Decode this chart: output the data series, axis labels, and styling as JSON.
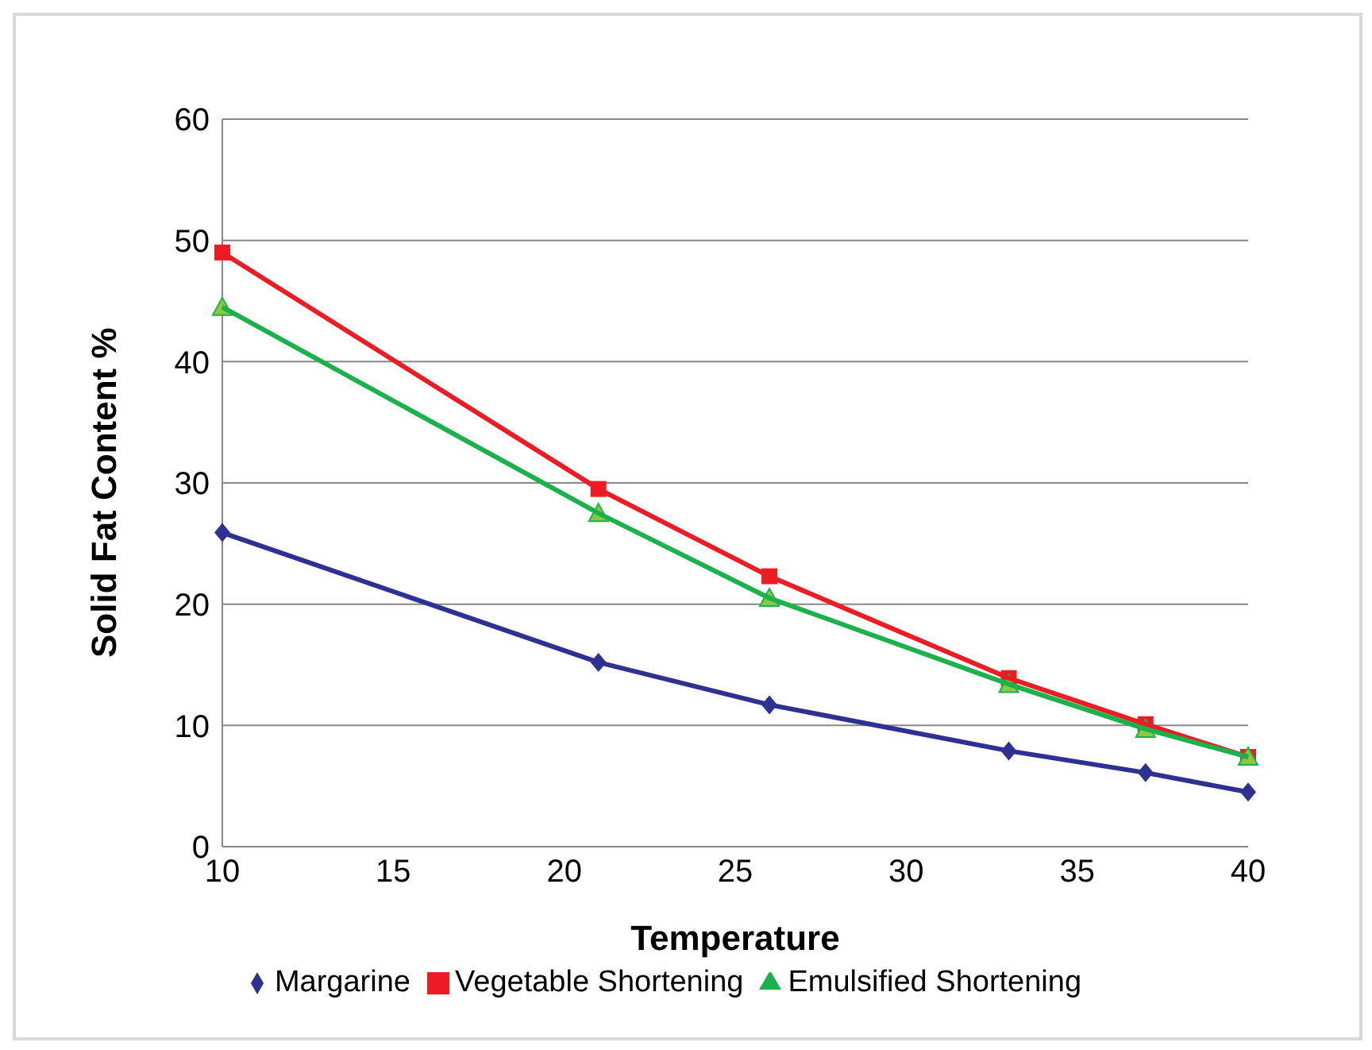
{
  "chart_data": {
    "type": "line",
    "xlabel": "Temperature",
    "ylabel": "Solid Fat Content %",
    "x": [
      10,
      21,
      26,
      33,
      37,
      40
    ],
    "series": [
      {
        "name": "Margarine",
        "color": "#2e3192",
        "marker": "diamond",
        "values": [
          25.9,
          15.2,
          11.7,
          7.9,
          6.1,
          4.5
        ]
      },
      {
        "name": "Vegetable Shortening",
        "color": "#ed1c24",
        "marker": "square",
        "values": [
          49.0,
          29.5,
          22.3,
          13.9,
          10.1,
          7.4
        ]
      },
      {
        "name": "Emulsified Shortening",
        "color": "#1bb24b",
        "marker": "triangle",
        "values": [
          44.5,
          27.5,
          20.5,
          13.4,
          9.7,
          7.4
        ]
      }
    ],
    "xlim": [
      10,
      40
    ],
    "xticks": [
      10,
      15,
      20,
      25,
      30,
      35,
      40
    ],
    "ylim": [
      0,
      60
    ],
    "yticks": [
      0,
      10,
      20,
      30,
      40,
      50,
      60
    ],
    "grid": "y",
    "legend": "bottom"
  }
}
